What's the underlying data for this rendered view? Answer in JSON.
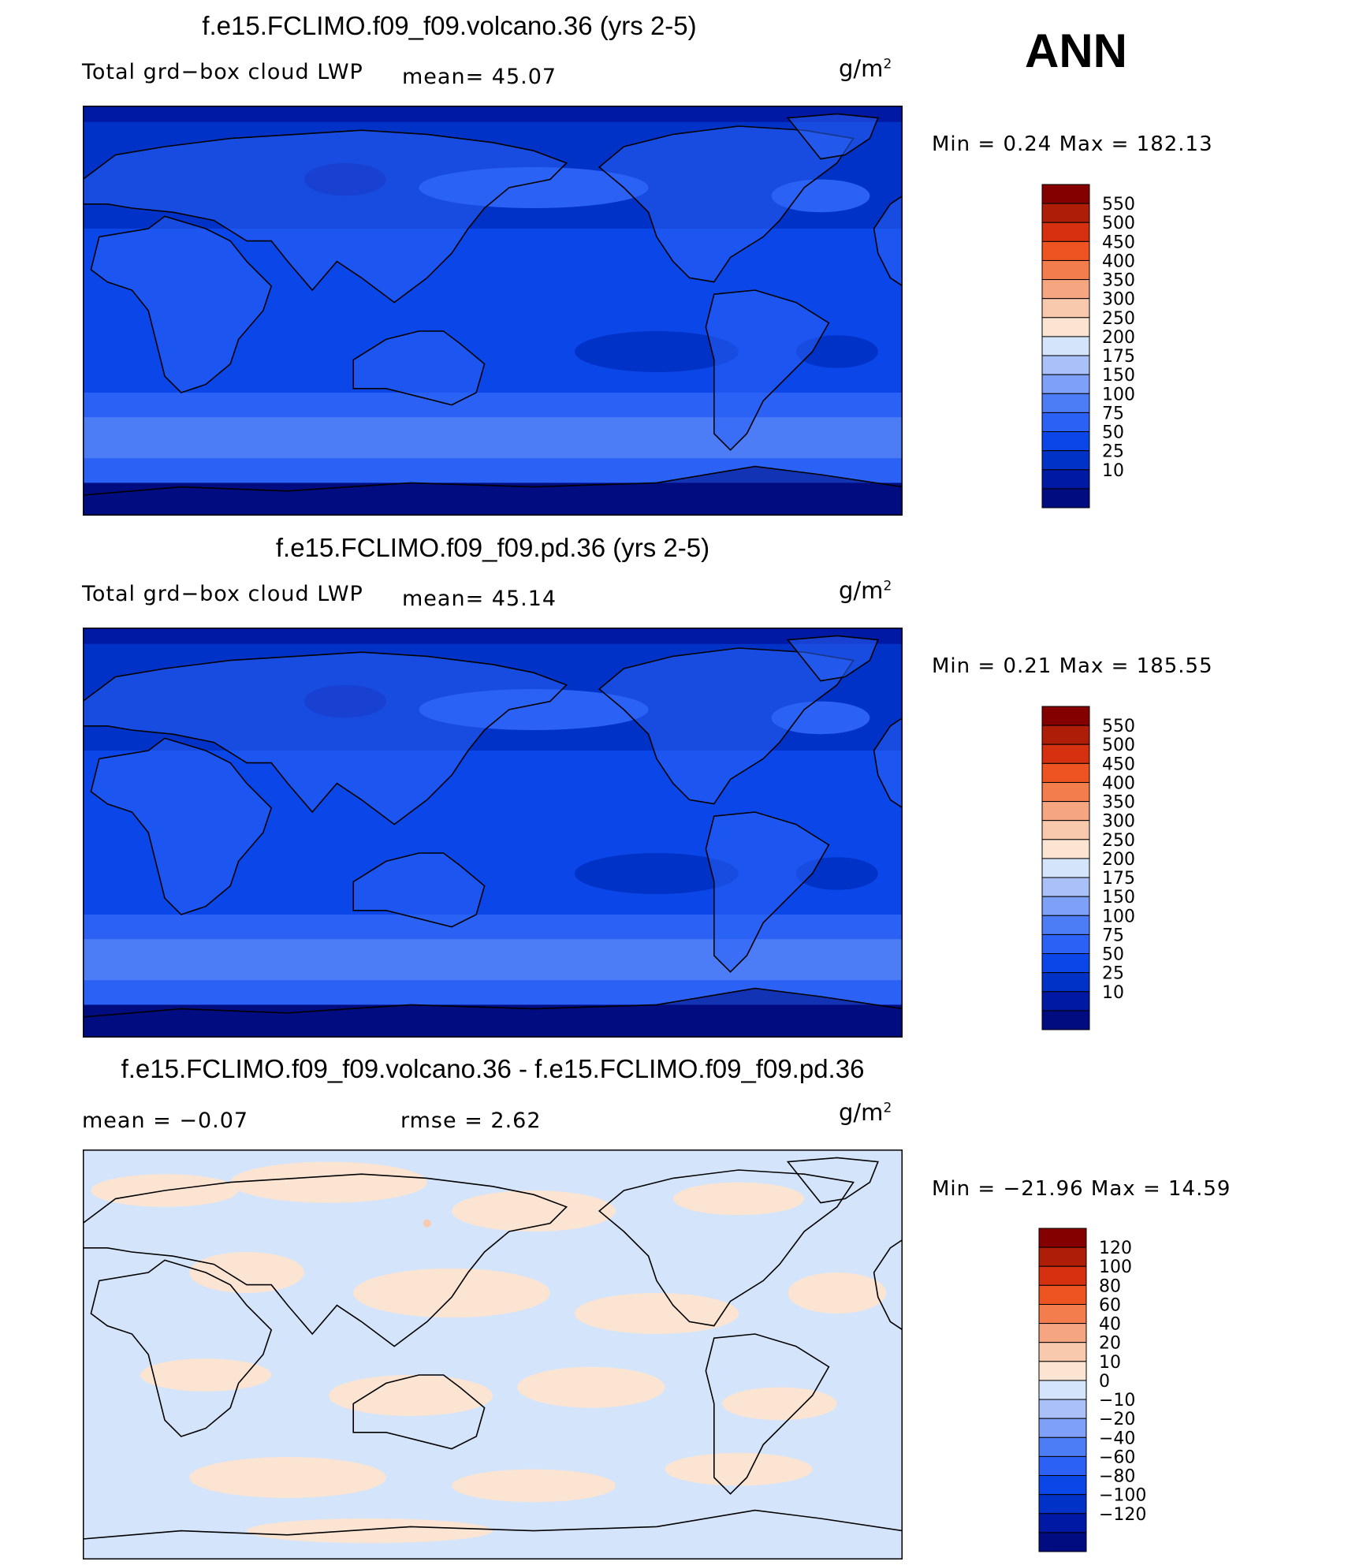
{
  "season": "ANN",
  "panels": [
    {
      "title": "f.e15.FCLIMO.f09_f09.volcano.36 (yrs 2-5)",
      "left_label": "Total grd−box cloud LWP",
      "stat1": "mean=   45.07",
      "stat2": "",
      "units": "g/m",
      "units_sup": "2",
      "minmax": "Min =    0.24  Max = 182.13",
      "palette": "blue",
      "levels": [
        "10",
        "25",
        "50",
        "75",
        "100",
        "150",
        "175",
        "200",
        "250",
        "300",
        "350",
        "400",
        "450",
        "500",
        "550"
      ]
    },
    {
      "title": "f.e15.FCLIMO.f09_f09.pd.36 (yrs 2-5)",
      "left_label": "Total grd−box cloud LWP",
      "stat1": "mean=   45.14",
      "stat2": "",
      "units": "g/m",
      "units_sup": "2",
      "minmax": "Min =    0.21  Max = 185.55",
      "palette": "blue",
      "levels": [
        "10",
        "25",
        "50",
        "75",
        "100",
        "150",
        "175",
        "200",
        "250",
        "300",
        "350",
        "400",
        "450",
        "500",
        "550"
      ]
    },
    {
      "title": "f.e15.FCLIMO.f09_f09.volcano.36 - f.e15.FCLIMO.f09_f09.pd.36",
      "left_label": "",
      "stat1": "mean =   −0.07",
      "stat2": "rmse =    2.62",
      "units": "g/m",
      "units_sup": "2",
      "minmax": "Min = −21.96  Max =   14.59",
      "palette": "diff",
      "levels": [
        "−120",
        "−100",
        "−80",
        "−60",
        "−40",
        "−20",
        "−10",
        "0",
        "10",
        "20",
        "40",
        "60",
        "80",
        "100",
        "120"
      ]
    }
  ],
  "chart_data": [
    {
      "type": "heatmap",
      "title": "f.e15.FCLIMO.f09_f09.volcano.36 (yrs 2-5)",
      "variable": "Total grd-box cloud LWP",
      "units": "g/m2",
      "mean": 45.07,
      "min": 0.24,
      "max": 182.13,
      "contour_levels": [
        10,
        25,
        50,
        75,
        100,
        150,
        175,
        200,
        250,
        300,
        350,
        400,
        450,
        500,
        550
      ],
      "colors": [
        "#000c80",
        "#0019a5",
        "#0032c8",
        "#0a46e8",
        "#2b62f5",
        "#4d7cf7",
        "#7fa0f7",
        "#a9c1f8",
        "#d4e5fb",
        "#fbe4d2",
        "#f8c9ad",
        "#f5a57f",
        "#f47d4d",
        "#ee5422",
        "#d53110",
        "#ad1d08",
        "#840000"
      ]
    },
    {
      "type": "heatmap",
      "title": "f.e15.FCLIMO.f09_f09.pd.36 (yrs 2-5)",
      "variable": "Total grd-box cloud LWP",
      "units": "g/m2",
      "mean": 45.14,
      "min": 0.21,
      "max": 185.55,
      "contour_levels": [
        10,
        25,
        50,
        75,
        100,
        150,
        175,
        200,
        250,
        300,
        350,
        400,
        450,
        500,
        550
      ],
      "colors": [
        "#000c80",
        "#0019a5",
        "#0032c8",
        "#0a46e8",
        "#2b62f5",
        "#4d7cf7",
        "#7fa0f7",
        "#a9c1f8",
        "#d4e5fb",
        "#fbe4d2",
        "#f8c9ad",
        "#f5a57f",
        "#f47d4d",
        "#ee5422",
        "#d53110",
        "#ad1d08",
        "#840000"
      ]
    },
    {
      "type": "heatmap",
      "title": "f.e15.FCLIMO.f09_f09.volcano.36 - f.e15.FCLIMO.f09_f09.pd.36",
      "units": "g/m2",
      "mean": -0.07,
      "rmse": 2.62,
      "min": -21.96,
      "max": 14.59,
      "contour_levels": [
        -120,
        -100,
        -80,
        -60,
        -40,
        -20,
        -10,
        0,
        10,
        20,
        40,
        60,
        80,
        100,
        120
      ],
      "colors": [
        "#000c80",
        "#0019a5",
        "#0032c8",
        "#0a46e8",
        "#2b62f5",
        "#4d7cf7",
        "#7fa0f7",
        "#a9c1f8",
        "#d4e5fb",
        "#fbe4d2",
        "#f8c9ad",
        "#f5a57f",
        "#f47d4d",
        "#ee5422",
        "#d53110",
        "#ad1d08",
        "#840000"
      ]
    }
  ]
}
